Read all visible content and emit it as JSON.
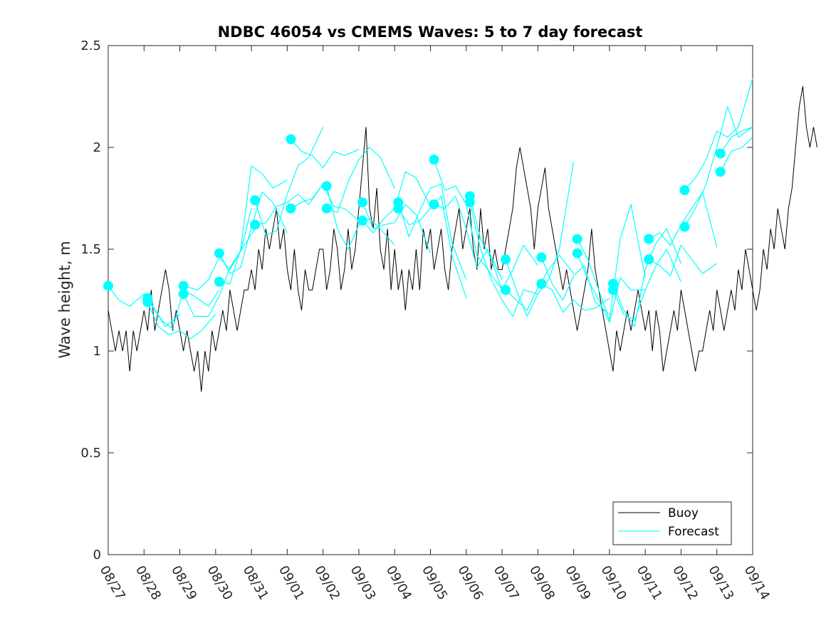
{
  "chart_data": {
    "type": "line",
    "title": "NDBC 46054 vs CMEMS Waves: 5 to 7 day forecast",
    "xlabel": "",
    "ylabel": "Wave height, m",
    "xlim_days": [
      0,
      18
    ],
    "ylim": [
      0,
      2.5
    ],
    "yticks": [
      0,
      0.5,
      1,
      1.5,
      2,
      2.5
    ],
    "ytick_labels": [
      "0",
      "0.5",
      "1",
      "1.5",
      "2",
      "2.5"
    ],
    "xtick_labels": [
      "08/27",
      "08/28",
      "08/29",
      "08/30",
      "08/31",
      "09/01",
      "09/02",
      "09/03",
      "09/04",
      "09/05",
      "09/06",
      "09/07",
      "09/08",
      "09/09",
      "09/10",
      "09/11",
      "09/12",
      "09/13",
      "09/14"
    ],
    "legend": {
      "position": "bottom-right",
      "entries": [
        {
          "label": "Buoy",
          "color": "#000000"
        },
        {
          "label": "Forecast",
          "color": "#00ffff"
        }
      ]
    },
    "colors": {
      "buoy": "#000000",
      "forecast": "#00ffff"
    },
    "series": [
      {
        "name": "Buoy",
        "x_start_day": 0,
        "x_step_days": 0.1,
        "y": [
          1.2,
          1.1,
          1.0,
          1.1,
          1.0,
          1.1,
          0.9,
          1.1,
          1.0,
          1.1,
          1.2,
          1.1,
          1.3,
          1.1,
          1.2,
          1.3,
          1.4,
          1.3,
          1.1,
          1.2,
          1.1,
          1.0,
          1.1,
          1.0,
          0.9,
          1.0,
          0.8,
          1.0,
          0.9,
          1.1,
          1.0,
          1.1,
          1.2,
          1.1,
          1.3,
          1.2,
          1.1,
          1.2,
          1.3,
          1.3,
          1.4,
          1.3,
          1.5,
          1.4,
          1.6,
          1.5,
          1.6,
          1.7,
          1.5,
          1.6,
          1.4,
          1.3,
          1.5,
          1.3,
          1.2,
          1.4,
          1.3,
          1.3,
          1.4,
          1.5,
          1.5,
          1.3,
          1.4,
          1.6,
          1.5,
          1.3,
          1.4,
          1.6,
          1.4,
          1.5,
          1.7,
          1.9,
          2.1,
          1.7,
          1.6,
          1.8,
          1.5,
          1.4,
          1.6,
          1.3,
          1.5,
          1.3,
          1.4,
          1.2,
          1.4,
          1.3,
          1.5,
          1.3,
          1.6,
          1.5,
          1.6,
          1.4,
          1.5,
          1.6,
          1.4,
          1.3,
          1.5,
          1.6,
          1.7,
          1.5,
          1.6,
          1.7,
          1.5,
          1.4,
          1.7,
          1.5,
          1.6,
          1.4,
          1.5,
          1.4,
          1.4,
          1.5,
          1.6,
          1.7,
          1.9,
          2.0,
          1.9,
          1.8,
          1.7,
          1.5,
          1.7,
          1.8,
          1.9,
          1.7,
          1.6,
          1.5,
          1.4,
          1.3,
          1.4,
          1.3,
          1.2,
          1.1,
          1.2,
          1.3,
          1.4,
          1.6,
          1.4,
          1.3,
          1.2,
          1.1,
          1.0,
          0.9,
          1.1,
          1.0,
          1.1,
          1.2,
          1.1,
          1.2,
          1.3,
          1.2,
          1.1,
          1.2,
          1.0,
          1.2,
          1.1,
          0.9,
          1.0,
          1.1,
          1.2,
          1.1,
          1.3,
          1.2,
          1.1,
          1.0,
          0.9,
          1.0,
          1.0,
          1.1,
          1.2,
          1.1,
          1.3,
          1.2,
          1.1,
          1.2,
          1.3,
          1.2,
          1.4,
          1.3,
          1.5,
          1.4,
          1.3,
          1.2,
          1.3,
          1.5,
          1.4,
          1.6,
          1.5,
          1.7,
          1.6,
          1.5,
          1.7,
          1.8,
          2.0,
          2.2,
          2.3,
          2.1,
          2.0,
          2.1,
          2.0
        ]
      },
      {
        "name": "Forecast",
        "run": 1,
        "x": [
          0,
          0.3,
          0.6,
          1.0,
          1.3,
          1.6,
          2.0
        ],
        "y": [
          1.32,
          1.25,
          1.22,
          1.28,
          1.2,
          1.12,
          1.18
        ]
      },
      {
        "name": "Forecast",
        "run": 2,
        "x": [
          1.1,
          1.4,
          1.7,
          2.0,
          2.3,
          2.6,
          3.0
        ],
        "y": [
          1.24,
          1.12,
          1.08,
          1.1,
          1.06,
          1.1,
          1.18
        ]
      },
      {
        "name": "Forecast",
        "run": 3,
        "x": [
          1.1,
          1.5,
          1.8,
          2.1,
          2.4,
          2.8,
          3.1
        ],
        "y": [
          1.26,
          1.15,
          1.11,
          1.3,
          1.27,
          1.22,
          1.3
        ]
      },
      {
        "name": "Forecast",
        "run": 4,
        "x": [
          2.1,
          2.5,
          2.8,
          3.1,
          3.4,
          3.7,
          4.0
        ],
        "y": [
          1.32,
          1.3,
          1.35,
          1.46,
          1.4,
          1.49,
          1.7
        ]
      },
      {
        "name": "Forecast",
        "run": 5,
        "x": [
          2.1,
          2.4,
          2.8,
          3.1,
          3.4,
          3.8,
          4.1
        ],
        "y": [
          1.28,
          1.17,
          1.17,
          1.27,
          1.41,
          1.52,
          1.6
        ]
      },
      {
        "name": "Forecast",
        "run": 6,
        "x": [
          3.1,
          3.4,
          3.7,
          4.0,
          4.3,
          4.6,
          5.0
        ],
        "y": [
          1.48,
          1.38,
          1.41,
          1.61,
          1.78,
          1.73,
          1.58
        ]
      },
      {
        "name": "Forecast",
        "run": 7,
        "x": [
          3.1,
          3.4,
          3.7,
          4.0,
          4.3,
          4.6,
          5.0
        ],
        "y": [
          1.34,
          1.33,
          1.5,
          1.91,
          1.87,
          1.8,
          1.84
        ]
      },
      {
        "name": "Forecast",
        "run": 8,
        "x": [
          4.1,
          4.4,
          4.7,
          5.0,
          5.3,
          5.6,
          6.0
        ],
        "y": [
          1.74,
          1.57,
          1.59,
          1.77,
          1.91,
          1.95,
          2.1
        ]
      },
      {
        "name": "Forecast",
        "run": 9,
        "x": [
          4.1,
          4.4,
          4.7,
          5.0,
          5.3,
          5.6,
          6.0
        ],
        "y": [
          1.62,
          1.63,
          1.71,
          1.73,
          1.77,
          1.72,
          1.82
        ]
      },
      {
        "name": "Forecast",
        "run": 10,
        "x": [
          5.1,
          5.4,
          5.7,
          6.0,
          6.3,
          6.6,
          7.0
        ],
        "y": [
          2.04,
          1.98,
          1.96,
          1.9,
          1.98,
          1.96,
          1.99
        ]
      },
      {
        "name": "Forecast",
        "run": 11,
        "x": [
          5.1,
          5.4,
          5.7,
          6.0,
          6.3,
          6.6,
          7.0
        ],
        "y": [
          1.7,
          1.73,
          1.75,
          1.82,
          1.71,
          1.7,
          1.64
        ]
      },
      {
        "name": "Forecast",
        "run": 12,
        "x": [
          6.1,
          6.4,
          6.7,
          7.0,
          7.3,
          7.6,
          8.0
        ],
        "y": [
          1.81,
          1.6,
          1.5,
          1.62,
          1.65,
          1.6,
          1.52
        ]
      },
      {
        "name": "Forecast",
        "run": 13,
        "x": [
          6.1,
          6.4,
          6.7,
          7.0,
          7.3,
          7.6,
          8.0
        ],
        "y": [
          1.7,
          1.68,
          1.83,
          1.94,
          2.0,
          1.95,
          1.8
        ]
      },
      {
        "name": "Forecast",
        "run": 14,
        "x": [
          7.1,
          7.4,
          7.7,
          8.0,
          8.3,
          8.6,
          9.0
        ],
        "y": [
          1.73,
          1.6,
          1.62,
          1.63,
          1.72,
          1.67,
          1.48
        ]
      },
      {
        "name": "Forecast",
        "run": 15,
        "x": [
          7.1,
          7.4,
          7.7,
          8.0,
          8.3,
          8.6,
          9.0
        ],
        "y": [
          1.64,
          1.58,
          1.65,
          1.7,
          1.88,
          1.85,
          1.71
        ]
      },
      {
        "name": "Forecast",
        "run": 16,
        "x": [
          8.1,
          8.4,
          8.7,
          9.0,
          9.3,
          9.6,
          10.0
        ],
        "y": [
          1.73,
          1.56,
          1.69,
          1.8,
          1.82,
          1.53,
          1.35
        ]
      },
      {
        "name": "Forecast",
        "run": 17,
        "x": [
          8.1,
          8.4,
          8.7,
          9.0,
          9.3,
          9.6,
          10.0
        ],
        "y": [
          1.7,
          1.62,
          1.64,
          1.7,
          1.76,
          1.47,
          1.26
        ]
      },
      {
        "name": "Forecast",
        "run": 18,
        "x": [
          9.1,
          9.4,
          9.7,
          10.0,
          10.3,
          10.6,
          11.0
        ],
        "y": [
          1.94,
          1.79,
          1.81,
          1.72,
          1.47,
          1.4,
          1.3
        ]
      },
      {
        "name": "Forecast",
        "run": 19,
        "x": [
          9.1,
          9.4,
          9.7,
          10.0,
          10.3,
          10.6,
          11.0
        ],
        "y": [
          1.72,
          1.7,
          1.76,
          1.6,
          1.41,
          1.5,
          1.35
        ]
      },
      {
        "name": "Forecast",
        "run": 20,
        "x": [
          10.1,
          10.4,
          10.7,
          11.0,
          11.3,
          11.6,
          12.0
        ],
        "y": [
          1.76,
          1.55,
          1.45,
          1.3,
          1.4,
          1.52,
          1.42
        ]
      },
      {
        "name": "Forecast",
        "run": 21,
        "x": [
          10.1,
          10.4,
          10.7,
          11.0,
          11.3,
          11.6,
          12.0
        ],
        "y": [
          1.73,
          1.5,
          1.35,
          1.25,
          1.17,
          1.3,
          1.28
        ]
      },
      {
        "name": "Forecast",
        "run": 22,
        "x": [
          11.1,
          11.4,
          11.7,
          12.0,
          12.3,
          12.6,
          13.0
        ],
        "y": [
          1.45,
          1.3,
          1.17,
          1.28,
          1.35,
          1.5,
          1.93
        ]
      },
      {
        "name": "Forecast",
        "run": 23,
        "x": [
          11.1,
          11.4,
          11.7,
          12.0,
          12.3,
          12.6,
          13.0
        ],
        "y": [
          1.3,
          1.25,
          1.2,
          1.31,
          1.4,
          1.47,
          1.38
        ]
      },
      {
        "name": "Forecast",
        "run": 24,
        "x": [
          12.1,
          12.4,
          12.7,
          13.0,
          13.3,
          13.6,
          14.0
        ],
        "y": [
          1.46,
          1.33,
          1.25,
          1.37,
          1.42,
          1.24,
          1.18
        ]
      },
      {
        "name": "Forecast",
        "run": 25,
        "x": [
          12.1,
          12.4,
          12.7,
          13.0,
          13.3,
          13.6,
          14.0
        ],
        "y": [
          1.33,
          1.3,
          1.19,
          1.25,
          1.2,
          1.21,
          1.26
        ]
      },
      {
        "name": "Forecast",
        "run": 26,
        "x": [
          13.1,
          13.4,
          13.7,
          14.0,
          14.3,
          14.6,
          15.0
        ],
        "y": [
          1.55,
          1.45,
          1.3,
          1.15,
          1.55,
          1.72,
          1.36
        ]
      },
      {
        "name": "Forecast",
        "run": 27,
        "x": [
          13.1,
          13.4,
          13.7,
          14.0,
          14.3,
          14.6,
          15.0
        ],
        "y": [
          1.48,
          1.35,
          1.25,
          1.14,
          1.36,
          1.3,
          1.3
        ]
      },
      {
        "name": "Forecast",
        "run": 28,
        "x": [
          14.1,
          14.4,
          14.7,
          15.0,
          15.3,
          15.6,
          16.0
        ],
        "y": [
          1.33,
          1.2,
          1.12,
          1.4,
          1.53,
          1.6,
          1.43
        ]
      },
      {
        "name": "Forecast",
        "run": 29,
        "x": [
          14.1,
          14.4,
          14.7,
          15.0,
          15.3,
          15.6,
          16.0
        ],
        "y": [
          1.3,
          1.18,
          1.15,
          1.3,
          1.42,
          1.5,
          1.34
        ]
      },
      {
        "name": "Forecast",
        "run": 30,
        "x": [
          15.1,
          15.4,
          15.7,
          16.0,
          16.3,
          16.6,
          17.0
        ],
        "y": [
          1.55,
          1.58,
          1.52,
          1.62,
          1.7,
          1.78,
          1.51
        ]
      },
      {
        "name": "Forecast",
        "run": 31,
        "x": [
          15.1,
          15.4,
          15.7,
          16.0,
          16.3,
          16.6,
          17.0
        ],
        "y": [
          1.45,
          1.42,
          1.37,
          1.52,
          1.45,
          1.38,
          1.43
        ]
      },
      {
        "name": "Forecast",
        "run": 32,
        "x": [
          16.1,
          16.4,
          16.7,
          17.0,
          17.3,
          17.6,
          18.0
        ],
        "y": [
          1.79,
          1.85,
          1.94,
          2.08,
          2.05,
          2.1,
          2.34
        ]
      },
      {
        "name": "Forecast",
        "run": 33,
        "x": [
          16.1,
          16.4,
          16.7,
          17.0,
          17.3,
          17.6,
          18.0
        ],
        "y": [
          1.61,
          1.7,
          1.82,
          2.0,
          2.2,
          2.05,
          2.1
        ]
      },
      {
        "name": "Forecast",
        "run": 34,
        "x": [
          17.1,
          17.4,
          17.7,
          18.0
        ],
        "y": [
          1.97,
          2.05,
          2.08,
          2.1
        ]
      },
      {
        "name": "Forecast",
        "run": 35,
        "x": [
          17.1,
          17.4,
          17.7,
          18.0
        ],
        "y": [
          1.88,
          1.98,
          2.0,
          2.05
        ]
      }
    ]
  }
}
